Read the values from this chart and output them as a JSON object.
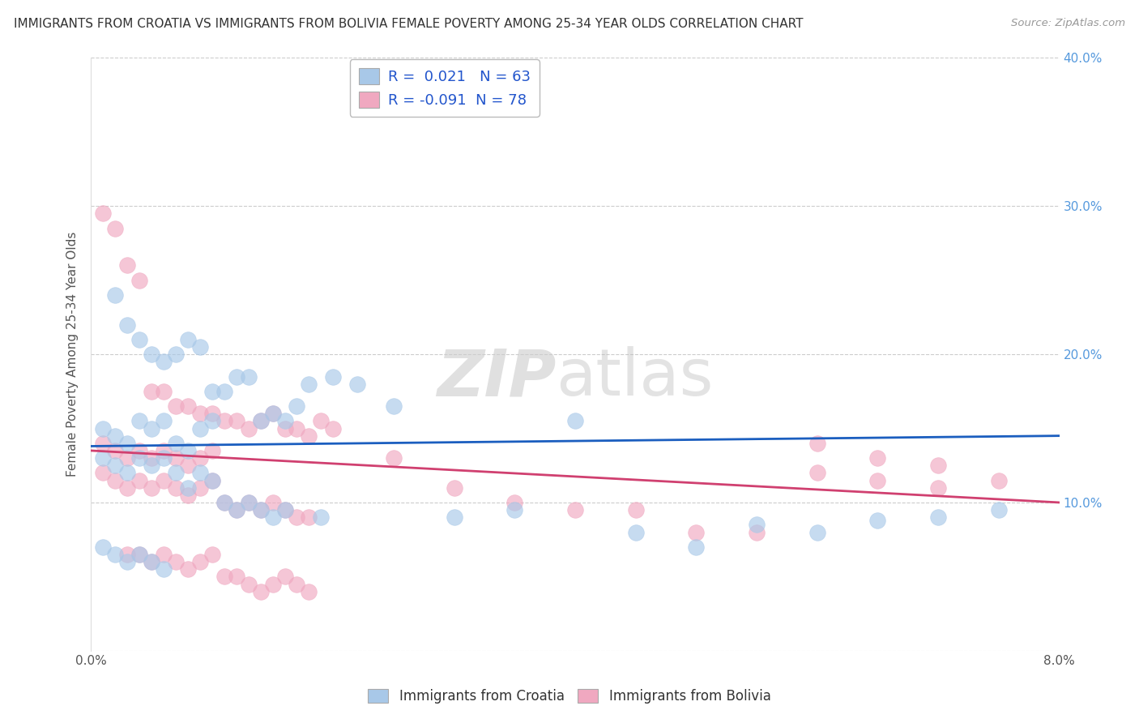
{
  "title": "IMMIGRANTS FROM CROATIA VS IMMIGRANTS FROM BOLIVIA FEMALE POVERTY AMONG 25-34 YEAR OLDS CORRELATION CHART",
  "source": "Source: ZipAtlas.com",
  "ylabel": "Female Poverty Among 25-34 Year Olds",
  "xlabel_croatia": "Immigrants from Croatia",
  "xlabel_bolivia": "Immigrants from Bolivia",
  "croatia_R": 0.021,
  "croatia_N": 63,
  "bolivia_R": -0.091,
  "bolivia_N": 78,
  "xlim": [
    0.0,
    0.08
  ],
  "ylim": [
    0.0,
    0.4
  ],
  "xticks": [
    0.0,
    0.02,
    0.04,
    0.06,
    0.08
  ],
  "xtick_labels": [
    "0.0%",
    "",
    "",
    "",
    "8.0%"
  ],
  "yticks": [
    0.0,
    0.1,
    0.2,
    0.3,
    0.4
  ],
  "ytick_labels_right": [
    "",
    "10.0%",
    "20.0%",
    "30.0%",
    "40.0%"
  ],
  "croatia_color": "#A8C8E8",
  "bolivia_color": "#F0A8C0",
  "croatia_line_color": "#1B5EBF",
  "bolivia_line_color": "#D04070",
  "croatia_x": [
    0.002,
    0.003,
    0.004,
    0.005,
    0.006,
    0.007,
    0.008,
    0.009,
    0.01,
    0.011,
    0.012,
    0.013,
    0.014,
    0.015,
    0.016,
    0.017,
    0.018,
    0.019,
    0.02,
    0.022,
    0.001,
    0.002,
    0.003,
    0.004,
    0.005,
    0.006,
    0.007,
    0.008,
    0.009,
    0.01,
    0.001,
    0.002,
    0.003,
    0.004,
    0.005,
    0.006,
    0.007,
    0.008,
    0.009,
    0.01,
    0.011,
    0.012,
    0.013,
    0.014,
    0.015,
    0.016,
    0.025,
    0.03,
    0.035,
    0.04,
    0.045,
    0.05,
    0.055,
    0.06,
    0.065,
    0.07,
    0.075,
    0.001,
    0.002,
    0.003,
    0.004,
    0.005,
    0.006
  ],
  "croatia_y": [
    0.24,
    0.22,
    0.21,
    0.2,
    0.195,
    0.2,
    0.21,
    0.205,
    0.175,
    0.175,
    0.185,
    0.185,
    0.155,
    0.16,
    0.155,
    0.165,
    0.18,
    0.09,
    0.185,
    0.18,
    0.15,
    0.145,
    0.14,
    0.155,
    0.15,
    0.155,
    0.14,
    0.135,
    0.15,
    0.155,
    0.13,
    0.125,
    0.12,
    0.13,
    0.125,
    0.13,
    0.12,
    0.11,
    0.12,
    0.115,
    0.1,
    0.095,
    0.1,
    0.095,
    0.09,
    0.095,
    0.165,
    0.09,
    0.095,
    0.155,
    0.08,
    0.07,
    0.085,
    0.08,
    0.088,
    0.09,
    0.095,
    0.07,
    0.065,
    0.06,
    0.065,
    0.06,
    0.055
  ],
  "bolivia_x": [
    0.001,
    0.002,
    0.003,
    0.004,
    0.005,
    0.006,
    0.007,
    0.008,
    0.009,
    0.01,
    0.011,
    0.012,
    0.013,
    0.014,
    0.015,
    0.016,
    0.017,
    0.018,
    0.019,
    0.02,
    0.001,
    0.002,
    0.003,
    0.004,
    0.005,
    0.006,
    0.007,
    0.008,
    0.009,
    0.01,
    0.001,
    0.002,
    0.003,
    0.004,
    0.005,
    0.006,
    0.007,
    0.008,
    0.009,
    0.01,
    0.011,
    0.012,
    0.013,
    0.014,
    0.015,
    0.016,
    0.017,
    0.018,
    0.025,
    0.03,
    0.035,
    0.04,
    0.045,
    0.05,
    0.055,
    0.06,
    0.065,
    0.07,
    0.075,
    0.06,
    0.065,
    0.07,
    0.003,
    0.004,
    0.005,
    0.006,
    0.007,
    0.008,
    0.009,
    0.01,
    0.011,
    0.012,
    0.013,
    0.014,
    0.015,
    0.016,
    0.017,
    0.018
  ],
  "bolivia_y": [
    0.295,
    0.285,
    0.26,
    0.25,
    0.175,
    0.175,
    0.165,
    0.165,
    0.16,
    0.16,
    0.155,
    0.155,
    0.15,
    0.155,
    0.16,
    0.15,
    0.15,
    0.145,
    0.155,
    0.15,
    0.14,
    0.135,
    0.13,
    0.135,
    0.13,
    0.135,
    0.13,
    0.125,
    0.13,
    0.135,
    0.12,
    0.115,
    0.11,
    0.115,
    0.11,
    0.115,
    0.11,
    0.105,
    0.11,
    0.115,
    0.1,
    0.095,
    0.1,
    0.095,
    0.1,
    0.095,
    0.09,
    0.09,
    0.13,
    0.11,
    0.1,
    0.095,
    0.095,
    0.08,
    0.08,
    0.12,
    0.115,
    0.11,
    0.115,
    0.14,
    0.13,
    0.125,
    0.065,
    0.065,
    0.06,
    0.065,
    0.06,
    0.055,
    0.06,
    0.065,
    0.05,
    0.05,
    0.045,
    0.04,
    0.045,
    0.05,
    0.045,
    0.04
  ]
}
